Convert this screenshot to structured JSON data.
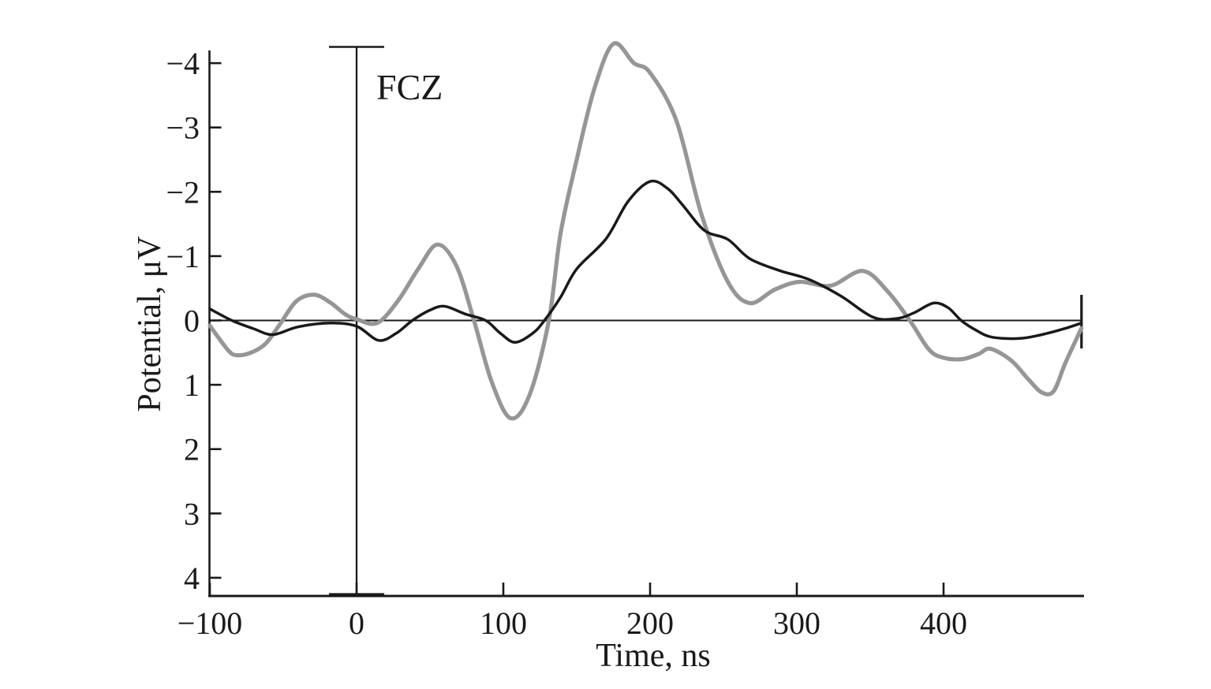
{
  "chart_data": {
    "type": "line",
    "title": "FCZ",
    "xlabel": "Time, ns",
    "ylabel": "Potential, μV",
    "axis_color": "#1a1a1a",
    "background_color": "#ffffff",
    "grid": false,
    "legend": "none",
    "y_axis": {
      "orientation": "negative-up",
      "min": -4.3,
      "max": 4.3,
      "ticks": [
        -4,
        -3,
        -2,
        -1,
        0,
        1,
        2,
        3,
        4
      ],
      "tick_labels": [
        "−4",
        "−3",
        "−2",
        "−1",
        "0",
        "1",
        "2",
        "3",
        "4"
      ]
    },
    "x_axis": {
      "min": -100,
      "max": 497,
      "ticks": [
        -100,
        0,
        100,
        200,
        300,
        400
      ],
      "tick_labels": [
        "−100",
        "0",
        "100",
        "200",
        "300",
        "400"
      ]
    },
    "markers": {
      "stimulus_onset_time": 0,
      "zero_baseline_value": 0,
      "sweep_end_time": 494
    },
    "series": [
      {
        "name": "gray-waveform",
        "color": "#969696",
        "stroke_width": 5.2,
        "points": [
          [
            -100,
            0.08
          ],
          [
            -88,
            0.45
          ],
          [
            -82,
            0.54
          ],
          [
            -72,
            0.5
          ],
          [
            -62,
            0.36
          ],
          [
            -52,
            0.05
          ],
          [
            -41,
            -0.3
          ],
          [
            -29,
            -0.4
          ],
          [
            -18,
            -0.28
          ],
          [
            -8,
            -0.1
          ],
          [
            0,
            -0.02
          ],
          [
            14,
            0.04
          ],
          [
            28,
            -0.3
          ],
          [
            42,
            -0.8
          ],
          [
            55,
            -1.18
          ],
          [
            68,
            -0.85
          ],
          [
            80,
            0.0
          ],
          [
            92,
            0.95
          ],
          [
            105,
            1.52
          ],
          [
            118,
            1.15
          ],
          [
            131,
            0.0
          ],
          [
            139,
            -1.35
          ],
          [
            150,
            -2.5
          ],
          [
            162,
            -3.6
          ],
          [
            175,
            -4.3
          ],
          [
            189,
            -4.0
          ],
          [
            200,
            -3.85
          ],
          [
            218,
            -3.1
          ],
          [
            235,
            -1.65
          ],
          [
            253,
            -0.6
          ],
          [
            268,
            -0.27
          ],
          [
            285,
            -0.48
          ],
          [
            302,
            -0.6
          ],
          [
            323,
            -0.54
          ],
          [
            345,
            -0.77
          ],
          [
            362,
            -0.45
          ],
          [
            377,
            0.0
          ],
          [
            390,
            0.45
          ],
          [
            400,
            0.58
          ],
          [
            413,
            0.6
          ],
          [
            424,
            0.52
          ],
          [
            432,
            0.44
          ],
          [
            446,
            0.62
          ],
          [
            458,
            0.92
          ],
          [
            467,
            1.12
          ],
          [
            475,
            1.1
          ],
          [
            483,
            0.66
          ],
          [
            494,
            0.12
          ]
        ]
      },
      {
        "name": "black-waveform",
        "color": "#1a1a1a",
        "stroke_width": 3.5,
        "points": [
          [
            -100,
            -0.18
          ],
          [
            -85,
            0.0
          ],
          [
            -70,
            0.13
          ],
          [
            -57,
            0.22
          ],
          [
            -40,
            0.1
          ],
          [
            -18,
            0.04
          ],
          [
            0,
            0.09
          ],
          [
            15,
            0.31
          ],
          [
            27,
            0.2
          ],
          [
            38,
            0.0
          ],
          [
            50,
            -0.16
          ],
          [
            60,
            -0.22
          ],
          [
            74,
            -0.1
          ],
          [
            88,
            0.0
          ],
          [
            98,
            0.2
          ],
          [
            108,
            0.34
          ],
          [
            120,
            0.2
          ],
          [
            128,
            0.0
          ],
          [
            139,
            -0.36
          ],
          [
            150,
            -0.8
          ],
          [
            170,
            -1.27
          ],
          [
            185,
            -1.85
          ],
          [
            200,
            -2.16
          ],
          [
            212,
            -2.05
          ],
          [
            222,
            -1.8
          ],
          [
            237,
            -1.4
          ],
          [
            253,
            -1.26
          ],
          [
            268,
            -0.96
          ],
          [
            289,
            -0.77
          ],
          [
            308,
            -0.64
          ],
          [
            330,
            -0.38
          ],
          [
            352,
            -0.05
          ],
          [
            368,
            -0.03
          ],
          [
            380,
            -0.12
          ],
          [
            393,
            -0.27
          ],
          [
            403,
            -0.2
          ],
          [
            412,
            0.0
          ],
          [
            422,
            0.15
          ],
          [
            433,
            0.26
          ],
          [
            452,
            0.28
          ],
          [
            467,
            0.22
          ],
          [
            482,
            0.13
          ],
          [
            494,
            0.04
          ]
        ]
      }
    ]
  }
}
